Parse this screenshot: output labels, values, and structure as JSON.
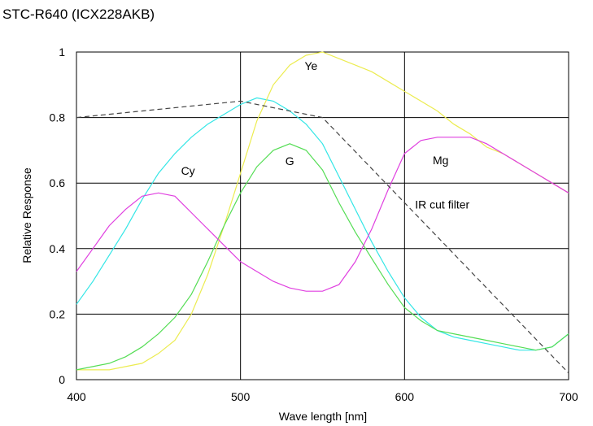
{
  "chart_data": {
    "type": "line",
    "title": "STC-R640 (ICX228AKB)",
    "xlabel": "Wave length [nm]",
    "ylabel": "Relative Response",
    "xlim": [
      400,
      700
    ],
    "ylim": [
      0,
      1
    ],
    "grid": true,
    "x_ticks": [
      "400",
      "500",
      "600",
      "700"
    ],
    "y_ticks": [
      "0",
      "0.2",
      "0.4",
      "0.6",
      "0.8",
      "1"
    ],
    "x_tick_values": [
      400,
      500,
      600,
      700
    ],
    "y_tick_values": [
      0,
      0.2,
      0.4,
      0.6,
      0.8,
      1
    ],
    "series": [
      {
        "name": "Cy",
        "color": "#33e6e6",
        "style": "solid",
        "x": [
          400,
          410,
          420,
          430,
          440,
          450,
          460,
          470,
          480,
          490,
          500,
          510,
          520,
          530,
          540,
          550,
          560,
          570,
          580,
          590,
          600,
          610,
          620,
          630,
          640,
          650,
          660,
          670,
          680,
          690,
          700
        ],
        "y": [
          0.23,
          0.3,
          0.38,
          0.46,
          0.55,
          0.63,
          0.69,
          0.74,
          0.78,
          0.81,
          0.84,
          0.86,
          0.85,
          0.82,
          0.78,
          0.72,
          0.62,
          0.52,
          0.42,
          0.33,
          0.25,
          0.19,
          0.15,
          0.13,
          0.12,
          0.11,
          0.1,
          0.09,
          0.09,
          0.1,
          0.14
        ]
      },
      {
        "name": "Ye",
        "color": "#ecec50",
        "style": "solid",
        "x": [
          400,
          410,
          420,
          430,
          440,
          450,
          460,
          470,
          480,
          490,
          500,
          510,
          520,
          530,
          540,
          550,
          560,
          570,
          580,
          590,
          600,
          610,
          620,
          630,
          640,
          650,
          660,
          670,
          680,
          690,
          700
        ],
        "y": [
          0.03,
          0.03,
          0.03,
          0.04,
          0.05,
          0.08,
          0.12,
          0.2,
          0.32,
          0.47,
          0.63,
          0.79,
          0.9,
          0.96,
          0.99,
          1.0,
          0.98,
          0.96,
          0.94,
          0.91,
          0.88,
          0.85,
          0.82,
          0.78,
          0.75,
          0.71,
          0.69,
          0.66,
          0.63,
          0.6,
          0.57
        ]
      },
      {
        "name": "G",
        "color": "#55dd55",
        "style": "solid",
        "x": [
          400,
          410,
          420,
          430,
          440,
          450,
          460,
          470,
          480,
          490,
          500,
          510,
          520,
          530,
          540,
          550,
          560,
          570,
          580,
          590,
          600,
          610,
          620,
          630,
          640,
          650,
          660,
          670,
          680,
          690,
          700
        ],
        "y": [
          0.03,
          0.04,
          0.05,
          0.07,
          0.1,
          0.14,
          0.19,
          0.26,
          0.36,
          0.47,
          0.57,
          0.65,
          0.7,
          0.72,
          0.7,
          0.64,
          0.54,
          0.45,
          0.37,
          0.29,
          0.22,
          0.18,
          0.15,
          0.14,
          0.13,
          0.12,
          0.11,
          0.1,
          0.09,
          0.1,
          0.14
        ]
      },
      {
        "name": "Mg",
        "color": "#e040e0",
        "style": "solid",
        "x": [
          400,
          410,
          420,
          430,
          440,
          450,
          460,
          470,
          480,
          490,
          500,
          510,
          520,
          530,
          540,
          550,
          560,
          570,
          580,
          590,
          600,
          610,
          620,
          630,
          640,
          650,
          660,
          670,
          680,
          690,
          700
        ],
        "y": [
          0.33,
          0.4,
          0.47,
          0.52,
          0.56,
          0.57,
          0.56,
          0.51,
          0.46,
          0.41,
          0.36,
          0.33,
          0.3,
          0.28,
          0.27,
          0.27,
          0.29,
          0.36,
          0.46,
          0.58,
          0.69,
          0.73,
          0.74,
          0.74,
          0.74,
          0.72,
          0.69,
          0.66,
          0.63,
          0.6,
          0.57
        ]
      },
      {
        "name": "IR cut filter",
        "color": "#444444",
        "style": "dashed",
        "x": [
          400,
          500,
          550,
          700
        ],
        "y": [
          0.8,
          0.85,
          0.8,
          0.02
        ]
      }
    ],
    "annotations": [
      {
        "text": "Cy",
        "x": 468,
        "y": 0.625
      },
      {
        "text": "Ye",
        "x": 543,
        "y": 0.945
      },
      {
        "text": "G",
        "x": 530,
        "y": 0.655
      },
      {
        "text": "Mg",
        "x": 622,
        "y": 0.658
      },
      {
        "text": "IR cut filter",
        "x": 623,
        "y": 0.522
      }
    ]
  }
}
